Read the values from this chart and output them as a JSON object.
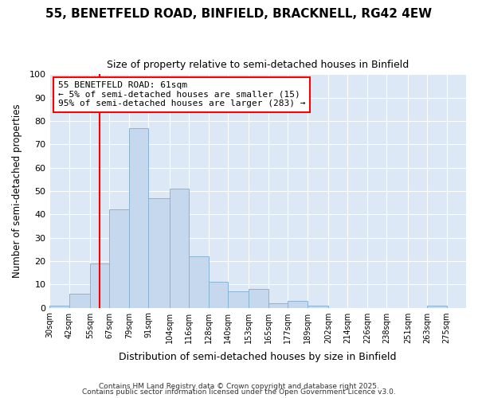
{
  "title": "55, BENETFELD ROAD, BINFIELD, BRACKNELL, RG42 4EW",
  "subtitle": "Size of property relative to semi-detached houses in Binfield",
  "xlabel": "Distribution of semi-detached houses by size in Binfield",
  "ylabel": "Number of semi-detached properties",
  "bar_color": "#c5d8ed",
  "bar_edge_color": "#8ab4d4",
  "background_color": "#ffffff",
  "plot_bg_color": "#dce8f5",
  "grid_color": "#ffffff",
  "red_line_x": 61,
  "annotation_title": "55 BENETFELD ROAD: 61sqm",
  "annotation_line1": "← 5% of semi-detached houses are smaller (15)",
  "annotation_line2": "95% of semi-detached houses are larger (283) →",
  "bins": [
    30,
    42,
    55,
    67,
    79,
    91,
    104,
    116,
    128,
    140,
    153,
    165,
    177,
    189,
    202,
    214,
    226,
    238,
    251,
    263,
    275
  ],
  "counts": [
    1,
    6,
    19,
    42,
    77,
    47,
    51,
    22,
    11,
    7,
    8,
    2,
    3,
    1,
    0,
    0,
    0,
    0,
    0,
    1
  ],
  "ylim": [
    0,
    100
  ],
  "yticks": [
    0,
    10,
    20,
    30,
    40,
    50,
    60,
    70,
    80,
    90,
    100
  ],
  "footer_line1": "Contains HM Land Registry data © Crown copyright and database right 2025.",
  "footer_line2": "Contains public sector information licensed under the Open Government Licence v3.0."
}
